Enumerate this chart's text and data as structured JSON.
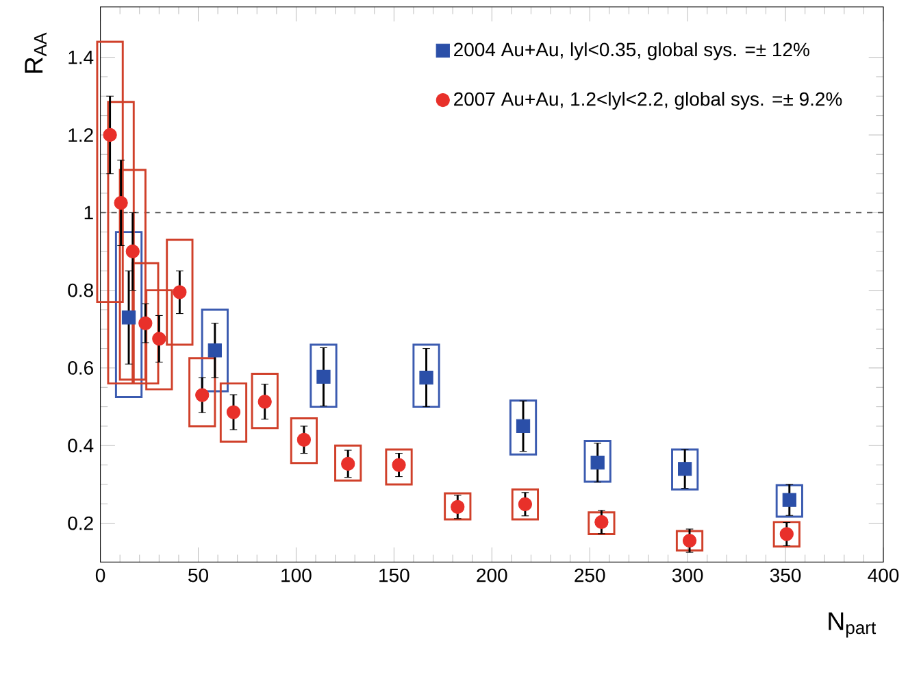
{
  "chart_data": {
    "type": "scatter",
    "xlabel": "N$_{part}$",
    "ylabel": "R$_{AA}$",
    "xlim": [
      0,
      400
    ],
    "ylim": [
      0.1,
      1.53
    ],
    "xticks": [
      0,
      50,
      100,
      150,
      200,
      250,
      300,
      350,
      400
    ],
    "yticks": [
      0.2,
      0.4,
      0.6,
      0.8,
      1,
      1.2,
      1.4
    ],
    "legend": "top right",
    "ref_lines": [
      {
        "axis": "y",
        "value": 1,
        "color": "#555555",
        "line_style": "dashed"
      }
    ],
    "series": [
      {
        "type": "bar",
        "color": "#3b5bb0",
        "x": [
          14.5,
          58.5,
          114,
          166.5,
          216,
          254,
          298.6,
          352
        ],
        "base": [
          0.525,
          0.54,
          0.5,
          0.5,
          0.377,
          0.307,
          0.287,
          0.217
        ],
        "values": [
          0.425,
          0.21,
          0.16,
          0.16,
          0.139,
          0.105,
          0.103,
          0.081
        ]
      },
      {
        "type": "bar",
        "color": "#d0402a",
        "x": [
          4.9,
          10.5,
          16.5,
          23,
          30,
          40.5,
          52,
          68,
          84,
          104,
          126.5,
          152.5,
          182.5,
          217,
          256,
          301,
          350.6
        ],
        "base": [
          0.77,
          0.56,
          0.57,
          0.56,
          0.545,
          0.66,
          0.45,
          0.41,
          0.445,
          0.355,
          0.31,
          0.3,
          0.21,
          0.21,
          0.172,
          0.13,
          0.14
        ],
        "values": [
          0.67,
          0.725,
          0.54,
          0.31,
          0.255,
          0.27,
          0.175,
          0.15,
          0.14,
          0.115,
          0.09,
          0.09,
          0.067,
          0.077,
          0.056,
          0.05,
          0.063
        ]
      },
      {
        "name": "2004 Au+Au,    lyl<0.35,    global sys. =± 12%",
        "color": "#2b4fa8",
        "marker": "square",
        "x": [
          14.5,
          58.5,
          114,
          166.5,
          216,
          254,
          298.6,
          352
        ],
        "values": [
          0.73,
          0.645,
          0.577,
          0.575,
          0.45,
          0.356,
          0.34,
          0.26
        ],
        "errors": [
          0.12,
          0.07,
          0.075,
          0.075,
          0.065,
          0.05,
          0.05,
          0.04
        ]
      },
      {
        "name": "2007 Au+Au,  1.2<lyl<2.2,  global sys. =± 9.2%",
        "color": "#e8302a",
        "marker": "circle",
        "x": [
          4.9,
          10.5,
          16.5,
          23,
          30,
          40.5,
          52,
          68,
          84,
          104,
          126.5,
          152.5,
          182.5,
          217,
          256,
          301,
          350.6
        ],
        "values": [
          1.2,
          1.025,
          0.9,
          0.715,
          0.675,
          0.795,
          0.53,
          0.486,
          0.513,
          0.415,
          0.353,
          0.35,
          0.242,
          0.249,
          0.203,
          0.155,
          0.172
        ],
        "errors": [
          0.1,
          0.11,
          0.1,
          0.05,
          0.06,
          0.055,
          0.045,
          0.045,
          0.045,
          0.035,
          0.035,
          0.03,
          0.03,
          0.03,
          0.03,
          0.03,
          0.03
        ]
      }
    ]
  }
}
